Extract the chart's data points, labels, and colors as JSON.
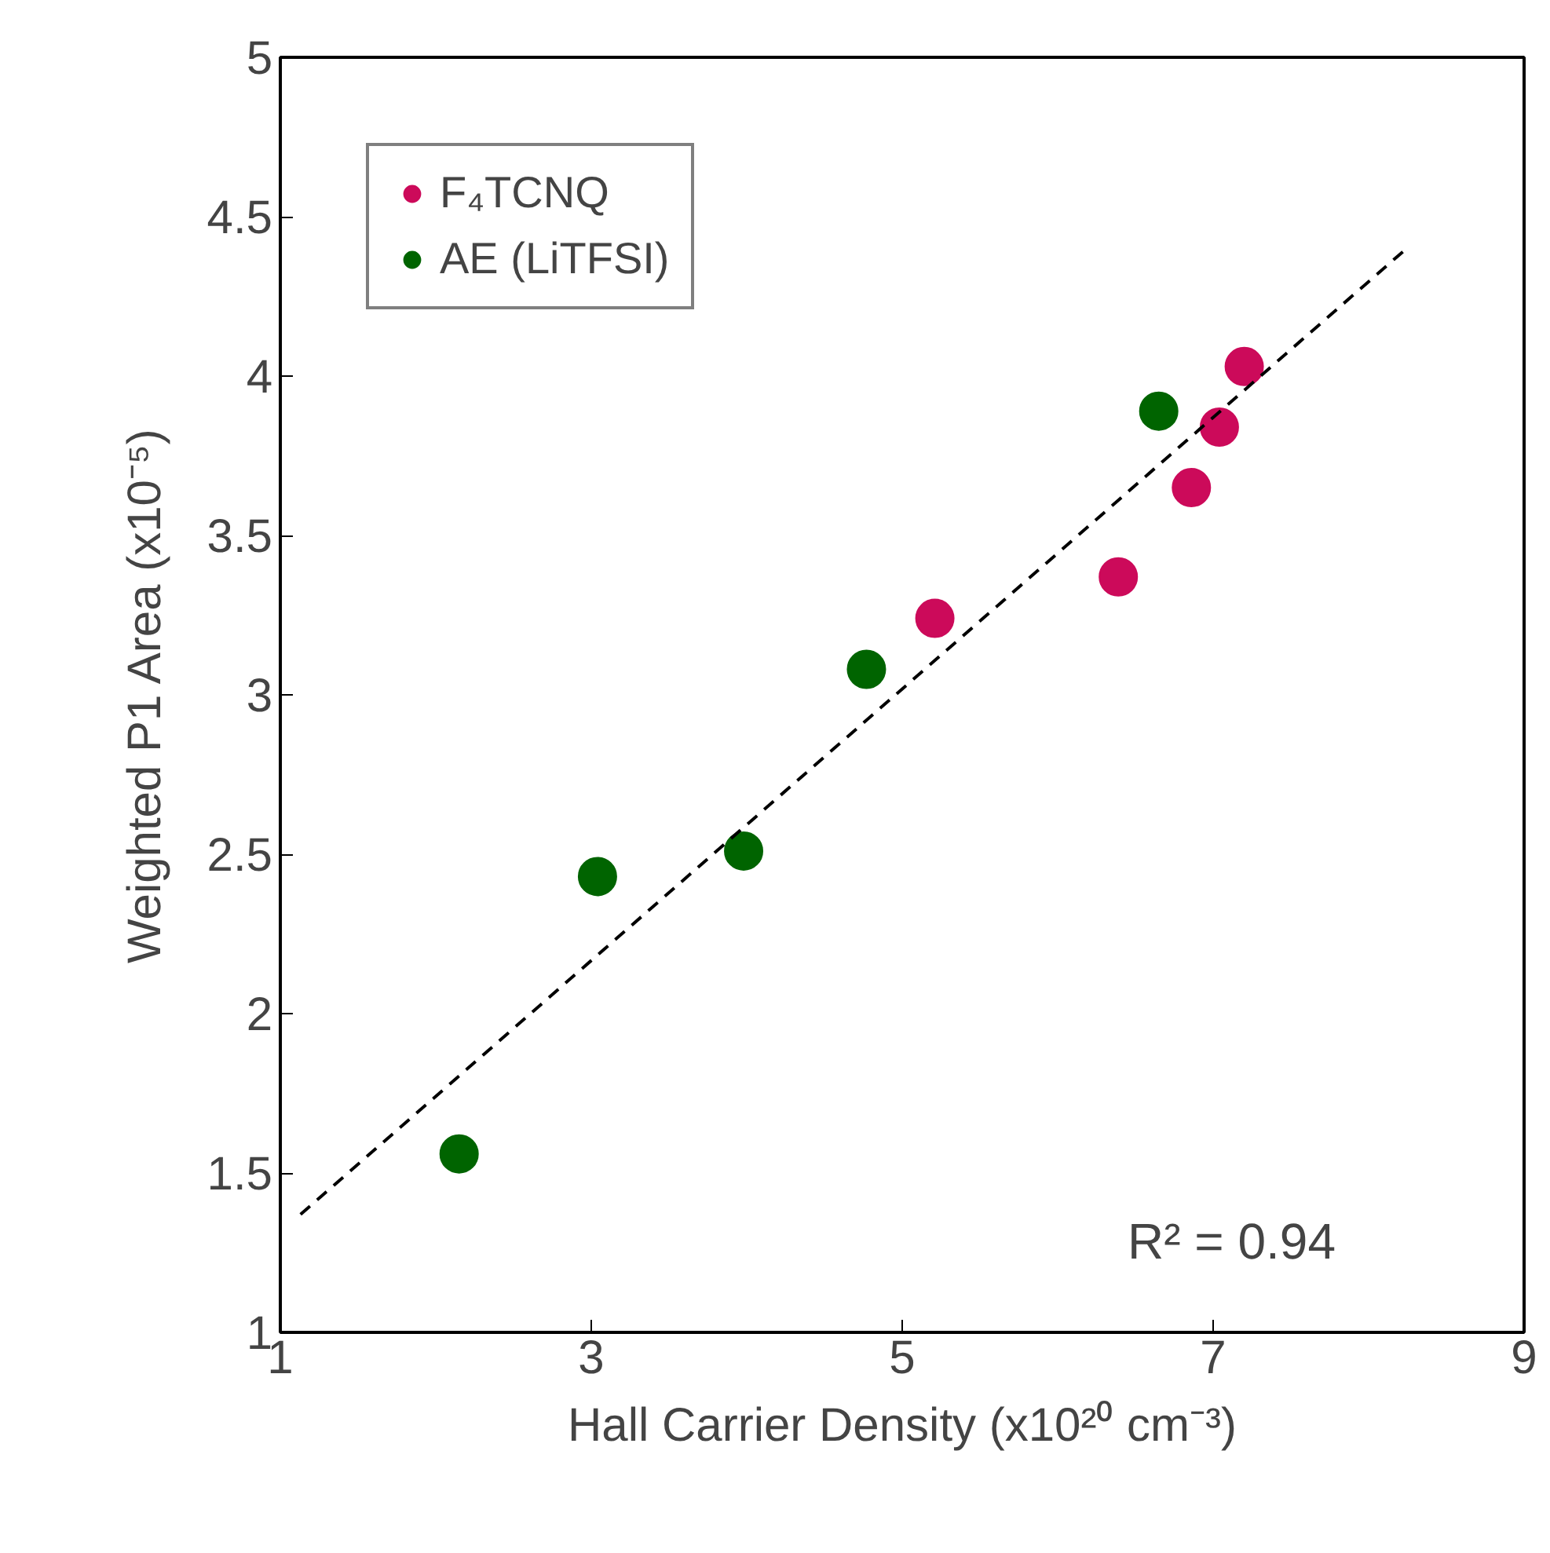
{
  "chart_data": {
    "type": "scatter",
    "xlabel": "Hall Carrier Density (x10²⁰ cm⁻³)",
    "ylabel": "Weighted P1 Area (x10⁻⁵)",
    "xlim": [
      1,
      9
    ],
    "ylim": [
      1,
      5
    ],
    "xticks": [
      1,
      3,
      5,
      7,
      9
    ],
    "yticks": [
      1,
      1.5,
      2,
      2.5,
      3,
      3.5,
      4,
      4.5,
      5
    ],
    "grid": false,
    "legend": "top left",
    "series": [
      {
        "name": "F₄TCNQ",
        "color": "#cc0a5a",
        "x": [
          7.2,
          7.04,
          6.86,
          6.39,
          5.21
        ],
        "values": [
          4.03,
          3.84,
          3.65,
          3.37,
          3.24
        ],
        "marker": "circle"
      },
      {
        "name": "AE (LiTFSI)",
        "color": "#006400",
        "x": [
          6.65,
          4.77,
          3.98,
          3.04,
          2.15
        ],
        "values": [
          3.89,
          3.08,
          2.51,
          2.43,
          1.56
        ],
        "marker": "circle"
      },
      {
        "type": "line",
        "color": "#000000",
        "line_style": "dashed",
        "marker": "none",
        "x": [
          1.13,
          8.22
        ],
        "values": [
          1.37,
          4.39
        ]
      }
    ],
    "annotations": [
      "R² = 0.94"
    ]
  }
}
